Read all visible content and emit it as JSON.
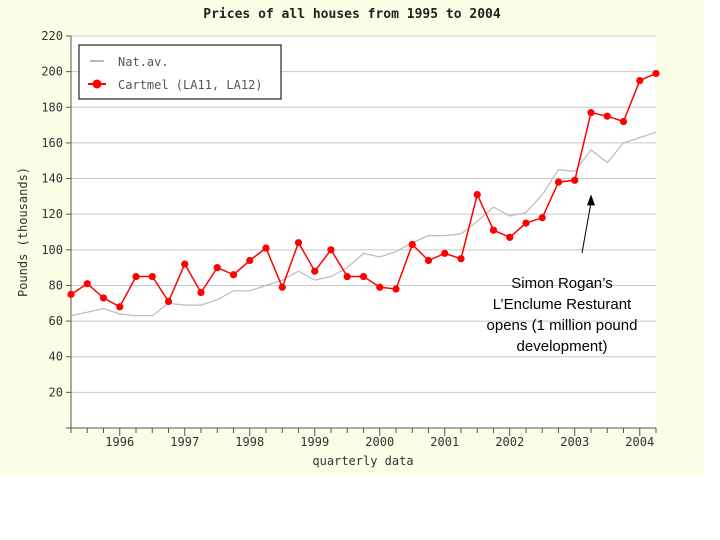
{
  "chart_data": {
    "type": "line",
    "title": "Prices of all houses from 1995 to 2004",
    "xlabel": "quarterly data",
    "ylabel": "Pounds (thousands)",
    "ylim": [
      0,
      220
    ],
    "yticks": [
      0,
      20,
      40,
      60,
      80,
      100,
      120,
      140,
      160,
      180,
      200,
      220
    ],
    "ytick_labels": [
      "",
      "20",
      "40",
      "60",
      "80",
      "100",
      "120",
      "140",
      "160",
      "180",
      "200",
      "220"
    ],
    "xlim": [
      1995.25,
      2004.25
    ],
    "x_tick_labels": [
      "1996",
      "1997",
      "1998",
      "1999",
      "2000",
      "2001",
      "2002",
      "2003",
      "2004"
    ],
    "x_tick_values": [
      1996,
      1997,
      1998,
      1999,
      2000,
      2001,
      2002,
      2003,
      2004
    ],
    "grid": true,
    "legend_position": "top-left",
    "x": [
      1995.25,
      1995.5,
      1995.75,
      1996,
      1996.25,
      1996.5,
      1996.75,
      1997,
      1997.25,
      1997.5,
      1997.75,
      1998,
      1998.25,
      1998.5,
      1998.75,
      1999,
      1999.25,
      1999.5,
      1999.75,
      2000,
      2000.25,
      2000.5,
      2000.75,
      2001,
      2001.25,
      2001.5,
      2001.75,
      2002,
      2002.25,
      2002.5,
      2002.75,
      2003,
      2003.25,
      2003.5,
      2003.75,
      2004,
      2004.25
    ],
    "series": [
      {
        "name": "Nat.av.",
        "color": "#bbbbbb",
        "marker": false,
        "values": [
          63,
          65,
          67,
          64,
          63,
          63,
          70,
          69,
          69,
          72,
          77,
          77,
          80,
          83,
          88,
          83,
          85,
          90,
          98,
          96,
          99,
          104,
          108,
          108,
          109,
          116,
          124,
          119,
          121,
          131,
          145,
          144,
          156,
          149,
          160,
          163,
          166
        ]
      },
      {
        "name": "Cartmel (LA11, LA12)",
        "color": "#ff0000",
        "marker": true,
        "values": [
          75,
          81,
          73,
          68,
          85,
          85,
          71,
          92,
          76,
          90,
          86,
          94,
          101,
          79,
          104,
          88,
          100,
          85,
          85,
          79,
          78,
          103,
          94,
          98,
          95,
          131,
          111,
          107,
          115,
          118,
          138,
          139,
          177,
          175,
          172,
          195,
          199
        ]
      }
    ],
    "annotation": {
      "lines": [
        "Simon Rogan’s",
        "L’Enclume Resturant",
        "opens (1 million pound",
        "development)"
      ],
      "arrow_target_x": 2003.25,
      "arrow_target_y": 130
    }
  },
  "colors": {
    "panel_background": "#fcfde6",
    "grid": "#c8c8c8",
    "axis": "#555555",
    "text": "#333333"
  }
}
